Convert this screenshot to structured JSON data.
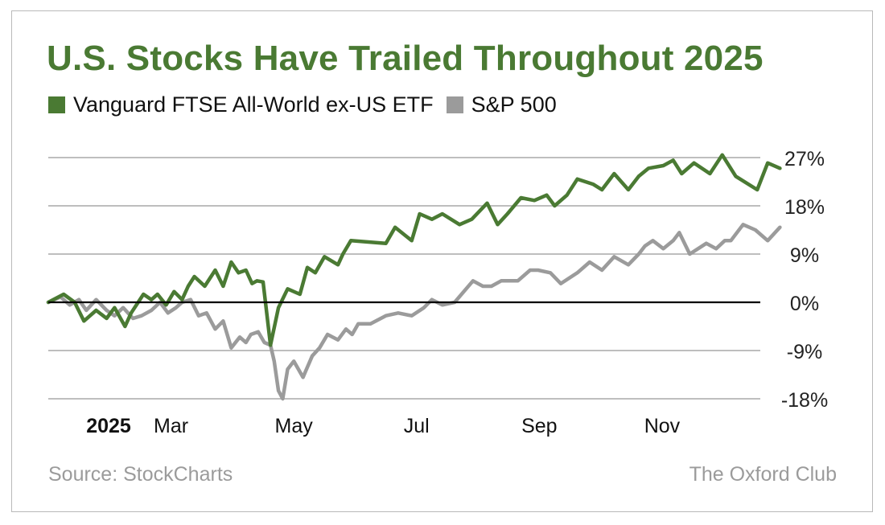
{
  "title": "U.S. Stocks Have Trailed Throughout 2025",
  "legend": [
    {
      "label": "Vanguard FTSE All-World ex-US ETF",
      "color": "#4a7a33"
    },
    {
      "label": "S&P 500",
      "color": "#9b9b9b"
    }
  ],
  "footer": {
    "source": "Source: StockCharts",
    "brand": "The Oxford Club"
  },
  "chart_data": {
    "type": "line",
    "title": "U.S. Stocks Have Trailed Throughout 2025",
    "xlabel": "",
    "ylabel": "",
    "x_unit": "months since Jan 1, 2025",
    "xlim": [
      0,
      11.6
    ],
    "ylim": [
      -18,
      27
    ],
    "yticks": [
      27,
      18,
      9,
      0,
      -9,
      -18
    ],
    "ytick_labels": [
      "27%",
      "18%",
      "9%",
      "0%",
      "-9%",
      "-18%"
    ],
    "xticks": [
      {
        "label": "2025",
        "value": 0,
        "bold": true
      },
      {
        "label": "Mar",
        "value": 2
      },
      {
        "label": "May",
        "value": 4
      },
      {
        "label": "Jul",
        "value": 6
      },
      {
        "label": "Sep",
        "value": 8
      },
      {
        "label": "Nov",
        "value": 10
      }
    ],
    "grid": true,
    "zero_line": true,
    "legend_position": "top-left",
    "series": [
      {
        "name": "Vanguard FTSE All-World ex-US ETF",
        "color": "#4a7a33",
        "x": [
          0.0,
          0.25,
          0.43,
          0.58,
          0.78,
          0.95,
          1.08,
          1.25,
          1.35,
          1.55,
          1.68,
          1.78,
          1.92,
          2.05,
          2.18,
          2.28,
          2.38,
          2.55,
          2.72,
          2.85,
          2.98,
          3.1,
          3.22,
          3.32,
          3.4,
          3.5,
          3.62,
          3.75,
          3.9,
          4.1,
          4.22,
          4.35,
          4.5,
          4.72,
          4.8,
          4.93,
          5.5,
          5.65,
          5.92,
          6.05,
          6.25,
          6.42,
          6.7,
          6.9,
          7.15,
          7.32,
          7.48,
          7.7,
          7.92,
          8.12,
          8.25,
          8.45,
          8.62,
          8.88,
          9.02,
          9.22,
          9.45,
          9.62,
          9.78,
          10.02,
          10.18,
          10.32,
          10.52,
          10.78,
          10.98,
          11.2,
          11.55,
          11.72,
          11.92
        ],
        "values": [
          0.0,
          1.5,
          0.0,
          -3.5,
          -1.5,
          -3.0,
          -1.0,
          -4.5,
          -2.0,
          1.5,
          0.5,
          1.5,
          -0.5,
          2.0,
          0.5,
          3.0,
          4.8,
          3.0,
          6.0,
          3.0,
          7.5,
          5.5,
          6.0,
          3.5,
          4.0,
          3.8,
          -8.0,
          -1.0,
          2.5,
          1.5,
          6.5,
          5.5,
          8.5,
          7.0,
          9.0,
          11.5,
          11.0,
          14.0,
          11.5,
          16.5,
          15.5,
          16.5,
          14.5,
          15.5,
          18.5,
          14.5,
          16.5,
          19.5,
          19.0,
          20.0,
          18.0,
          20.0,
          23.0,
          22.0,
          21.0,
          24.0,
          21.0,
          23.5,
          25.0,
          25.5,
          26.5,
          24.0,
          26.0,
          24.0,
          27.5,
          23.5,
          21.0,
          26.0,
          25.0
        ]
      },
      {
        "name": "S&P 500",
        "color": "#9b9b9b",
        "x": [
          0.0,
          0.2,
          0.35,
          0.5,
          0.62,
          0.78,
          0.95,
          1.08,
          1.22,
          1.38,
          1.52,
          1.68,
          1.82,
          1.95,
          2.08,
          2.18,
          2.32,
          2.45,
          2.58,
          2.72,
          2.85,
          2.98,
          3.12,
          3.22,
          3.3,
          3.42,
          3.52,
          3.62,
          3.68,
          3.75,
          3.82,
          3.9,
          4.0,
          4.15,
          4.3,
          4.42,
          4.55,
          4.72,
          4.85,
          4.95,
          5.05,
          5.25,
          5.5,
          5.7,
          5.92,
          6.12,
          6.25,
          6.42,
          6.62,
          6.92,
          7.08,
          7.22,
          7.38,
          7.5,
          7.65,
          7.85,
          7.98,
          8.18,
          8.35,
          8.62,
          8.82,
          9.02,
          9.22,
          9.45,
          9.62,
          9.72,
          9.85,
          10.02,
          10.18,
          10.28,
          10.45,
          10.72,
          10.88,
          11.02,
          11.12,
          11.32,
          11.52,
          11.72,
          11.92
        ],
        "values": [
          0.0,
          1.0,
          -0.5,
          0.5,
          -1.5,
          0.5,
          -1.5,
          -2.5,
          -1.0,
          -3.0,
          -2.5,
          -1.5,
          0.0,
          -2.0,
          -1.0,
          0.0,
          0.5,
          -2.5,
          -2.0,
          -5.0,
          -3.5,
          -8.5,
          -6.5,
          -7.5,
          -6.0,
          -5.5,
          -7.5,
          -8.0,
          -11.0,
          -16.5,
          -18.0,
          -12.5,
          -11.0,
          -14.0,
          -10.0,
          -8.5,
          -6.0,
          -7.0,
          -5.0,
          -6.0,
          -4.0,
          -4.0,
          -2.5,
          -2.0,
          -2.5,
          -1.0,
          0.5,
          -0.5,
          0.0,
          4.0,
          3.0,
          3.0,
          4.0,
          4.0,
          4.0,
          6.0,
          6.0,
          5.5,
          3.5,
          5.5,
          7.5,
          6.0,
          8.5,
          7.0,
          9.0,
          10.5,
          11.5,
          10.0,
          11.5,
          13.0,
          9.0,
          11.0,
          10.0,
          11.5,
          11.5,
          14.5,
          13.5,
          11.5,
          14.0
        ]
      }
    ]
  }
}
